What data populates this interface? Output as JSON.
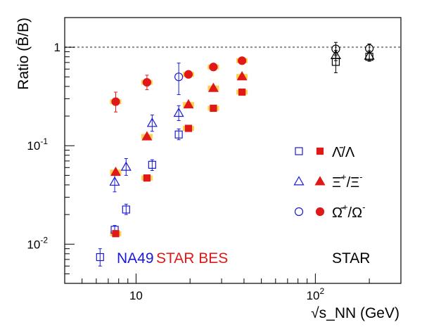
{
  "chart_data": {
    "type": "scatter",
    "xlabel": "√s_NN (GeV)",
    "ylabel": "Ratio (B̄/B)",
    "xscale": "log",
    "yscale": "log",
    "xlim": [
      4,
      300
    ],
    "ylim": [
      0.004,
      2.0
    ],
    "reference_line_y": 1,
    "x_ticks": [
      {
        "value": 10,
        "base": "10",
        "exp": ""
      },
      {
        "value": 100,
        "base": "10",
        "exp": "2"
      }
    ],
    "y_ticks": [
      {
        "value": 0.01,
        "base": "10",
        "exp": "-2"
      },
      {
        "value": 0.1,
        "base": "10",
        "exp": "-1"
      },
      {
        "value": 1,
        "base": "1",
        "exp": ""
      }
    ],
    "legend": {
      "placement": "right",
      "entries": [
        {
          "key": "lambda",
          "base": "Λ̄/Λ",
          "sup1": "",
          "mid": "",
          "sup2": ""
        },
        {
          "key": "xi",
          "base": "Ξ̄",
          "sup1": "+",
          "mid": "/Ξ",
          "sup2": "-"
        },
        {
          "key": "omega",
          "base": "Ω̄",
          "sup1": "+",
          "mid": "/Ω",
          "sup2": "-"
        }
      ]
    },
    "experiment_labels": [
      {
        "text": "NA49",
        "color": "#1a1ad6"
      },
      {
        "text": "STAR BES",
        "color": "#e01818"
      },
      {
        "text": "STAR",
        "color": "#000000"
      }
    ],
    "series": [
      {
        "name": "NA49",
        "particle": "lambda",
        "marker": "square-open",
        "color": "#1a1ad6",
        "points": [
          {
            "x": 6.3,
            "y": 0.0074,
            "lo": 0.006,
            "hi": 0.009
          },
          {
            "x": 7.6,
            "y": 0.014,
            "lo": 0.0125,
            "hi": 0.0155
          },
          {
            "x": 8.8,
            "y": 0.0225,
            "lo": 0.02,
            "hi": 0.0255
          },
          {
            "x": 12.3,
            "y": 0.064,
            "lo": 0.056,
            "hi": 0.072
          },
          {
            "x": 17.3,
            "y": 0.13,
            "lo": 0.115,
            "hi": 0.148
          }
        ]
      },
      {
        "name": "NA49",
        "particle": "xi",
        "marker": "triangle-open",
        "color": "#1a1ad6",
        "points": [
          {
            "x": 7.6,
            "y": 0.043,
            "lo": 0.034,
            "hi": 0.054
          },
          {
            "x": 8.8,
            "y": 0.061,
            "lo": 0.05,
            "hi": 0.074
          },
          {
            "x": 12.3,
            "y": 0.17,
            "lo": 0.14,
            "hi": 0.205
          },
          {
            "x": 17.3,
            "y": 0.215,
            "lo": 0.18,
            "hi": 0.255
          }
        ]
      },
      {
        "name": "NA49",
        "particle": "omega",
        "marker": "circle-open",
        "color": "#1a1ad6",
        "points": [
          {
            "x": 17.3,
            "y": 0.5,
            "lo": 0.33,
            "hi": 0.69
          }
        ]
      },
      {
        "name": "STAR BES",
        "particle": "lambda",
        "marker": "square-filled",
        "color": "#e01818",
        "points": [
          {
            "x": 7.7,
            "y": 0.0128,
            "lo": 0.0122,
            "hi": 0.0134
          },
          {
            "x": 11.5,
            "y": 0.047,
            "lo": 0.0455,
            "hi": 0.0485
          },
          {
            "x": 19.6,
            "y": 0.15,
            "lo": 0.145,
            "hi": 0.155
          },
          {
            "x": 27,
            "y": 0.24,
            "lo": 0.232,
            "hi": 0.248
          },
          {
            "x": 39,
            "y": 0.35,
            "lo": 0.34,
            "hi": 0.36
          }
        ]
      },
      {
        "name": "STAR BES",
        "particle": "xi",
        "marker": "triangle-filled",
        "color": "#e01818",
        "points": [
          {
            "x": 7.7,
            "y": 0.054,
            "lo": 0.051,
            "hi": 0.057
          },
          {
            "x": 11.5,
            "y": 0.124,
            "lo": 0.118,
            "hi": 0.13
          },
          {
            "x": 19.6,
            "y": 0.262,
            "lo": 0.25,
            "hi": 0.274
          },
          {
            "x": 27,
            "y": 0.385,
            "lo": 0.37,
            "hi": 0.4
          },
          {
            "x": 39,
            "y": 0.505,
            "lo": 0.49,
            "hi": 0.52
          }
        ]
      },
      {
        "name": "STAR BES",
        "particle": "omega",
        "marker": "circle-filled",
        "color": "#e01818",
        "points": [
          {
            "x": 7.7,
            "y": 0.28,
            "lo": 0.22,
            "hi": 0.35
          },
          {
            "x": 11.5,
            "y": 0.44,
            "lo": 0.37,
            "hi": 0.52
          },
          {
            "x": 19.6,
            "y": 0.53,
            "lo": 0.49,
            "hi": 0.57
          },
          {
            "x": 27,
            "y": 0.63,
            "lo": 0.6,
            "hi": 0.66
          },
          {
            "x": 39,
            "y": 0.73,
            "lo": 0.7,
            "hi": 0.76
          }
        ]
      },
      {
        "name": "STAR",
        "particle": "lambda",
        "marker": "square-open",
        "color": "#000000",
        "points": [
          {
            "x": 130,
            "y": 0.71,
            "lo": 0.55,
            "hi": 0.85
          },
          {
            "x": 200,
            "y": 0.8,
            "lo": 0.74,
            "hi": 0.87
          }
        ]
      },
      {
        "name": "STAR",
        "particle": "xi",
        "marker": "triangle-open",
        "color": "#000000",
        "points": [
          {
            "x": 130,
            "y": 0.83,
            "lo": 0.73,
            "hi": 0.93
          },
          {
            "x": 200,
            "y": 0.82,
            "lo": 0.72,
            "hi": 0.92
          }
        ]
      },
      {
        "name": "STAR",
        "particle": "omega",
        "marker": "circle-open",
        "color": "#000000",
        "points": [
          {
            "x": 130,
            "y": 0.96,
            "lo": 0.82,
            "hi": 1.12
          },
          {
            "x": 200,
            "y": 0.97,
            "lo": 0.88,
            "hi": 1.08
          }
        ]
      }
    ]
  }
}
